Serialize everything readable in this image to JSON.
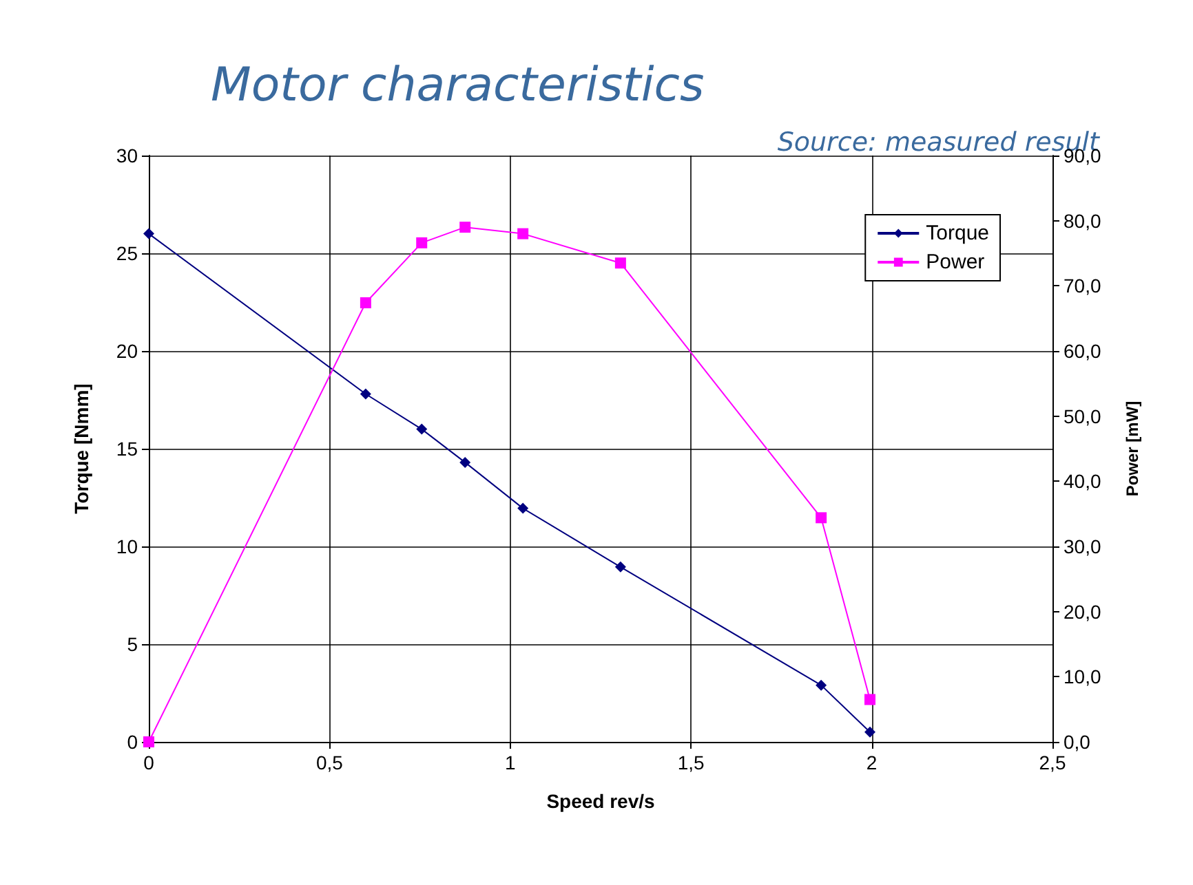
{
  "chart_data": {
    "type": "line",
    "title": "Motor characteristics",
    "annotations": [
      "Source: measured result"
    ],
    "xlabel": "Speed rev/s",
    "ylabel": "Torque [Nmm]",
    "y2label": "Power [mW]",
    "x": [
      0,
      0.6,
      0.755,
      0.875,
      1.035,
      1.305,
      1.86,
      1.995
    ],
    "series": [
      {
        "name": "Torque",
        "color": "#000080",
        "marker": "diamond",
        "values": [
          26,
          17.8,
          16.0,
          14.3,
          11.95,
          8.95,
          2.9,
          0.5
        ]
      },
      {
        "name": "Power",
        "color": "#ff00ff",
        "marker": "square",
        "axis": "y2",
        "values": [
          0,
          67.4,
          76.6,
          79.0,
          78.0,
          73.5,
          34.4,
          6.5
        ]
      }
    ],
    "xlim": [
      0,
      2.5
    ],
    "xticks": [
      0,
      {
        "value": 0.5,
        "label": "0,5"
      },
      1,
      {
        "value": 1.5,
        "label": "1,5"
      },
      2,
      {
        "value": 2.5,
        "label": "2,5"
      }
    ],
    "ylim": [
      0,
      30
    ],
    "yticks": [
      0,
      5,
      10,
      15,
      20,
      25,
      30
    ],
    "y2lim": [
      0,
      90
    ],
    "y2ticks": [
      {
        "value": 0,
        "label": "0,0"
      },
      {
        "value": 10,
        "label": "10,0"
      },
      {
        "value": 20,
        "label": "20,0"
      },
      {
        "value": 30,
        "label": "30,0"
      },
      {
        "value": 40,
        "label": "40,0"
      },
      {
        "value": 50,
        "label": "50,0"
      },
      {
        "value": 60,
        "label": "60,0"
      },
      {
        "value": 70,
        "label": "70,0"
      },
      {
        "value": 80,
        "label": "80,0"
      },
      {
        "value": 90,
        "label": "90,0"
      }
    ],
    "grid": true,
    "legend": "top right",
    "line_style": "solid"
  }
}
